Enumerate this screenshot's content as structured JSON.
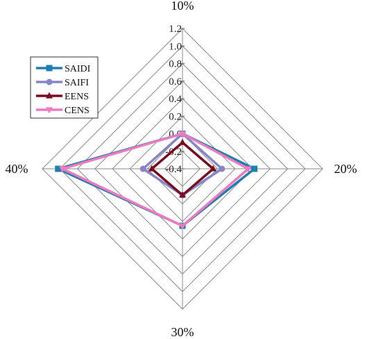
{
  "chart_data": {
    "type": "radar",
    "categories": [
      "10%",
      "20%",
      "30%",
      "40%"
    ],
    "rlim": [
      -0.4,
      1.2
    ],
    "r_ticks": [
      "-0.4",
      "-0.2",
      "0.0",
      "0.2",
      "0.4",
      "0.6",
      "0.8",
      "1.0",
      "1.2"
    ],
    "grid": true,
    "legend_position": "top-left",
    "series": [
      {
        "name": "SAIDI",
        "values": [
          0.0,
          0.42,
          0.25,
          1.02
        ],
        "color": "#1f7fb0",
        "marker": "square"
      },
      {
        "name": "SAIFI",
        "values": [
          0.0,
          0.05,
          -0.1,
          0.05
        ],
        "color": "#8585c8",
        "marker": "circle"
      },
      {
        "name": "EENS",
        "values": [
          -0.1,
          -0.05,
          -0.1,
          -0.05
        ],
        "color": "#7a0c1f",
        "marker": "triangle-up"
      },
      {
        "name": "CENS",
        "values": [
          0.0,
          0.35,
          0.25,
          0.97
        ],
        "color": "#f07ac0",
        "marker": "triangle-down"
      }
    ]
  }
}
